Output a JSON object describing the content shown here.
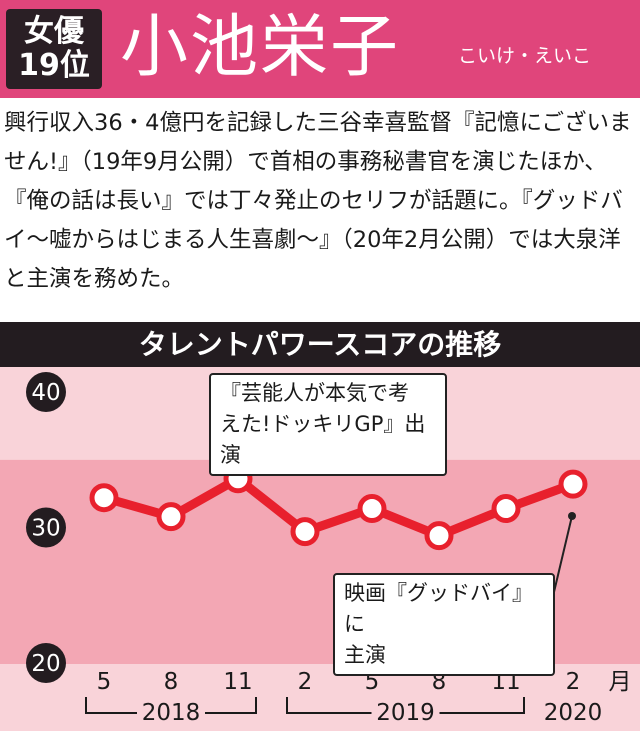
{
  "header": {
    "rank_line1": "女優",
    "rank_line2": "19位",
    "name": "小池栄子",
    "reading": "こいけ・えいこ"
  },
  "description": "興行収入36・4億円を記録した三谷幸喜監督『記憶にございません!』（19年9月公開）で首相の事務秘書官を演じたほか、『俺の話は長い』では丁々発止のセリフが話題に。『グッドバイ〜嘘からはじまる人生喜劇〜』（20年2月公開）では大泉洋と主演を務めた。",
  "colors": {
    "header_bg": "#e0457b",
    "band_dark": "#f3a7b4",
    "band_light": "#f9d3d9",
    "line": "#e8202d",
    "title_bar": "#231c20"
  },
  "chart_data": {
    "type": "line",
    "title": "タレントパワースコアの推移",
    "x_month_unit": "月",
    "x": [
      "5",
      "8",
      "11",
      "2",
      "5",
      "8",
      "11",
      "2"
    ],
    "year_groups": [
      {
        "label": "2018",
        "start_index": 0,
        "end_index": 2
      },
      {
        "label": "2019",
        "start_index": 3,
        "end_index": 6
      },
      {
        "label": "2020",
        "start_index": 7,
        "end_index": 7
      }
    ],
    "values": [
      32.2,
      30.8,
      33.6,
      29.7,
      31.4,
      29.4,
      31.4,
      33.2
    ],
    "ylim": [
      20,
      42
    ],
    "yticks": [
      20,
      30,
      40
    ],
    "annotations": [
      {
        "text_line1": "『芸能人が本気で考",
        "text_line2": "えた!ドッキリGP』出演",
        "point_index": 2
      },
      {
        "text_line1": "映画『グッドバイ』に",
        "text_line2": "主演",
        "point_index": 7
      }
    ]
  }
}
